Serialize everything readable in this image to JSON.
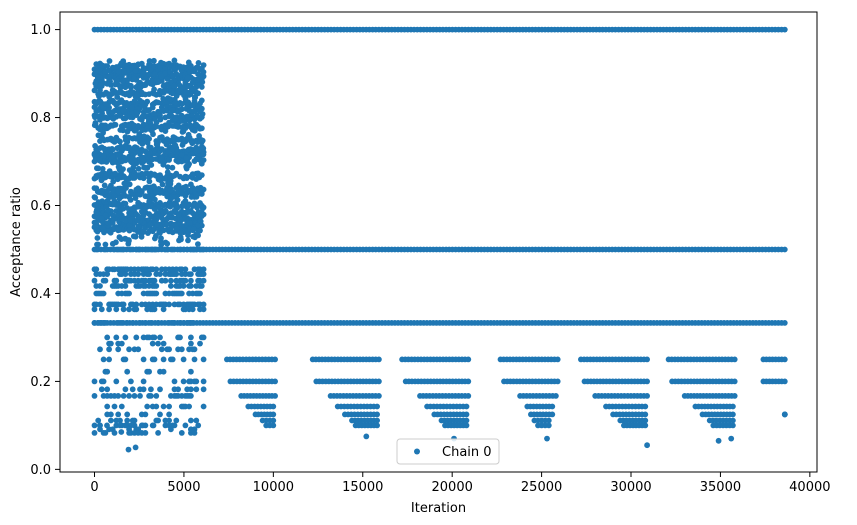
{
  "chart_data": {
    "type": "scatter",
    "xlabel": "Iteration",
    "ylabel": "Acceptance ratio",
    "xlim": [
      -1930,
      40400
    ],
    "ylim": [
      -0.006,
      1.04
    ],
    "x_ticks": [
      0,
      5000,
      10000,
      15000,
      20000,
      25000,
      30000,
      35000,
      40000
    ],
    "x_tick_labels": [
      "0",
      "5000",
      "10000",
      "15000",
      "20000",
      "25000",
      "30000",
      "35000",
      "40000"
    ],
    "y_ticks": [
      0.0,
      0.2,
      0.4,
      0.6,
      0.8,
      1.0
    ],
    "y_tick_labels": [
      "0.0",
      "0.2",
      "0.4",
      "0.6",
      "0.8",
      "1.0"
    ],
    "grid": false,
    "legend_position": "lower-center",
    "color": "#1f77b4",
    "series": [
      {
        "name": "Chain 0",
        "marker": "circle",
        "bands": [
          {
            "y": 1.0,
            "x_range": [
              0,
              38600
            ]
          },
          {
            "y": 0.5,
            "x_range": [
              0,
              38600
            ]
          },
          {
            "y": 0.333,
            "x_range": [
              0,
              38600
            ]
          },
          {
            "y": 0.25,
            "x_ranges": [
              [
                7400,
                10100
              ],
              [
                12200,
                15900
              ],
              [
                17200,
                20900
              ],
              [
                22700,
                25900
              ],
              [
                27200,
                30900
              ],
              [
                32100,
                35800
              ],
              [
                37400,
                38600
              ]
            ]
          },
          {
            "y": 0.2,
            "x_ranges": [
              [
                7600,
                10100
              ],
              [
                12400,
                15900
              ],
              [
                17400,
                20900
              ],
              [
                22900,
                25900
              ],
              [
                27400,
                30900
              ],
              [
                32300,
                35800
              ],
              [
                37400,
                38600
              ]
            ]
          },
          {
            "y": 0.167,
            "x_ranges": [
              [
                8200,
                10100
              ],
              [
                13200,
                15900
              ],
              [
                18200,
                20900
              ],
              [
                23800,
                25800
              ],
              [
                28000,
                30900
              ],
              [
                33000,
                35800
              ]
            ]
          },
          {
            "y": 0.143,
            "x_ranges": [
              [
                8600,
                10000
              ],
              [
                13600,
                15800
              ],
              [
                18600,
                20800
              ],
              [
                24200,
                25600
              ],
              [
                28600,
                30800
              ],
              [
                33600,
                35700
              ]
            ]
          },
          {
            "y": 0.125,
            "x_ranges": [
              [
                9000,
                10000
              ],
              [
                14000,
                15800
              ],
              [
                19000,
                20800
              ],
              [
                24400,
                25600
              ],
              [
                29000,
                30800
              ],
              [
                34000,
                35700
              ],
              [
                38600,
                38600
              ]
            ]
          },
          {
            "y": 0.111,
            "x_ranges": [
              [
                9400,
                10000
              ],
              [
                14400,
                15800
              ],
              [
                19400,
                20800
              ],
              [
                24600,
                25400
              ],
              [
                29400,
                30800
              ],
              [
                34400,
                35700
              ]
            ]
          },
          {
            "y": 0.1,
            "x_ranges": [
              [
                9600,
                10000
              ],
              [
                14600,
                15800
              ],
              [
                19600,
                20800
              ],
              [
                24800,
                25400
              ],
              [
                29600,
                30800
              ],
              [
                34600,
                35700
              ]
            ]
          }
        ],
        "early_phase": {
          "x_range": [
            0,
            6100
          ],
          "y_range": [
            0.05,
            0.94
          ]
        },
        "sparse_points": [
          {
            "x": 1900,
            "y": 0.045
          },
          {
            "x": 2300,
            "y": 0.05
          },
          {
            "x": 1500,
            "y": 0.085
          },
          {
            "x": 5400,
            "y": 0.09
          },
          {
            "x": 5800,
            "y": 0.1
          },
          {
            "x": 300,
            "y": 0.1
          },
          {
            "x": 700,
            "y": 0.1
          },
          {
            "x": 2700,
            "y": 0.1
          },
          {
            "x": 3300,
            "y": 0.1
          },
          {
            "x": 15200,
            "y": 0.075
          },
          {
            "x": 20100,
            "y": 0.07
          },
          {
            "x": 25300,
            "y": 0.07
          },
          {
            "x": 30900,
            "y": 0.055
          },
          {
            "x": 35600,
            "y": 0.07
          },
          {
            "x": 34900,
            "y": 0.065
          },
          {
            "x": 38600,
            "y": 0.125
          }
        ]
      }
    ]
  }
}
